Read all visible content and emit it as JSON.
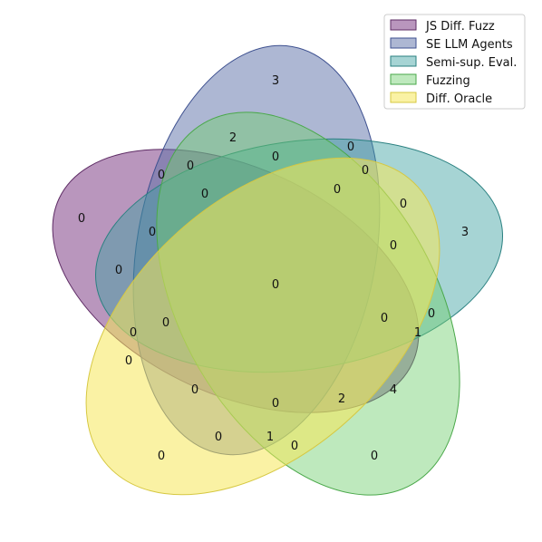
{
  "diagram": {
    "type": "venn5",
    "sets": [
      {
        "name": "JS Diff. Fuzz",
        "color": "#7f3f87"
      },
      {
        "name": "SE LLM Agents",
        "color": "#5b6fa8"
      },
      {
        "name": "Semi-sup. Eval.",
        "color": "#3aa0a0"
      },
      {
        "name": "Fuzzing",
        "color": "#6fce6c"
      },
      {
        "name": "Diff. Oracle",
        "color": "#f5e85a"
      }
    ],
    "region_counts": [
      "3",
      "2",
      "0",
      "0",
      "0",
      "0",
      "0",
      "3",
      "0",
      "0",
      "0",
      "0",
      "0",
      "0",
      "0",
      "0",
      "0",
      "0",
      "0",
      "0",
      "1",
      "4",
      "2",
      "0",
      "0",
      "0",
      "0",
      "1",
      "0",
      "0",
      "0"
    ]
  }
}
